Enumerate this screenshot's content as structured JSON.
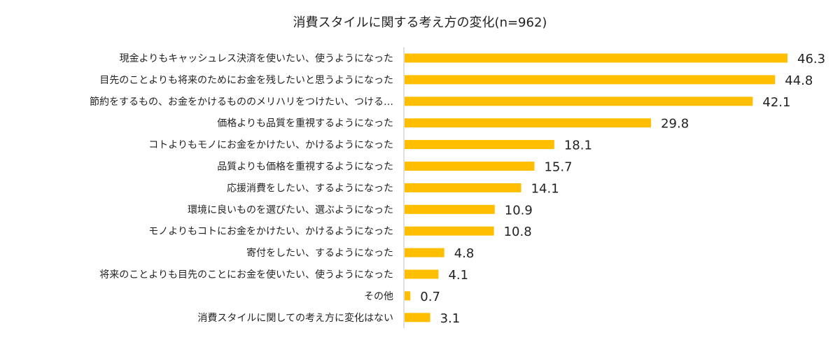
{
  "chart_data": {
    "type": "bar",
    "orientation": "horizontal",
    "title": "消費スタイルに関する考え方の変化(n=962)",
    "categories": [
      "現金よりもキャッシュレス決済を使いたい、使うようになった",
      "目先のことよりも将来のためにお金を残したいと思うようになった",
      "節約をするもの、お金をかけるもののメリハリをつけたい、つける…",
      "価格よりも品質を重視するようになった",
      "コトよりもモノにお金をかけたい、かけるようになった",
      "品質よりも価格を重視するようになった",
      "応援消費をしたい、するようになった",
      "環境に良いものを選びたい、選ぶようになった",
      "モノよりもコトにお金をかけたい、かけるようになった",
      "寄付をしたい、するようになった",
      "将来のことよりも目先のことにお金を使いたい、使うようになった",
      "その他",
      "消費スタイルに関しての考え方に変化はない"
    ],
    "value_labels": [
      "46.3",
      "44.8",
      "42.1",
      "29.8",
      "18.1",
      "15.7",
      "14.1",
      "10.9",
      "10.8",
      "4.8",
      "4.1",
      "0.7",
      "3.1"
    ],
    "values": [
      46.3,
      44.8,
      42.1,
      29.8,
      18.1,
      15.7,
      14.1,
      10.9,
      10.8,
      4.8,
      4.1,
      0.7,
      3.1
    ],
    "xlim": [
      0,
      50
    ],
    "grid": false,
    "legend": "none",
    "bar_color": "#FFBF00",
    "text_color": "#222222",
    "axis_color": "#bfbfbf"
  }
}
